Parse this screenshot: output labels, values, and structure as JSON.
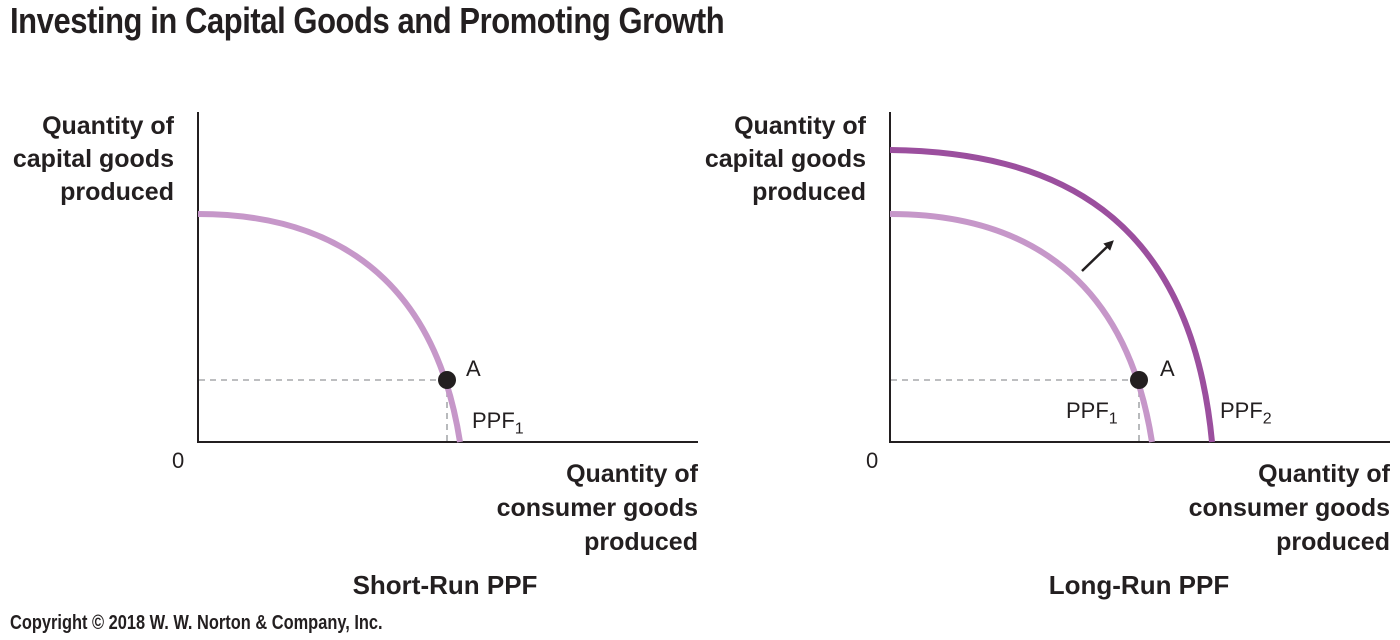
{
  "title": "Investing in Capital Goods and Promoting Growth",
  "copyright": "Copyright © 2018 W. W. Norton & Company, Inc.",
  "panels": [
    {
      "caption": "Short-Run PPF",
      "y_axis_label": [
        "Quantity of",
        "capital goods",
        "produced"
      ],
      "x_axis_label": [
        "Quantity of",
        "consumer goods",
        "produced"
      ],
      "origin_label": "0",
      "curves": [
        {
          "name": "PPF",
          "subscript": "1",
          "color": "#c697c9"
        }
      ],
      "point": {
        "label": "A"
      }
    },
    {
      "caption": "Long-Run PPF",
      "y_axis_label": [
        "Quantity of",
        "capital goods",
        "produced"
      ],
      "x_axis_label": [
        "Quantity of",
        "consumer goods",
        "produced"
      ],
      "origin_label": "0",
      "curves": [
        {
          "name": "PPF",
          "subscript": "1",
          "color": "#c697c9"
        },
        {
          "name": "PPF",
          "subscript": "2",
          "color": "#9b4f9e"
        }
      ],
      "point": {
        "label": "A"
      }
    }
  ],
  "colors": {
    "axis": "#231f20",
    "guide": "#a7a9ac",
    "point": "#231f20"
  }
}
